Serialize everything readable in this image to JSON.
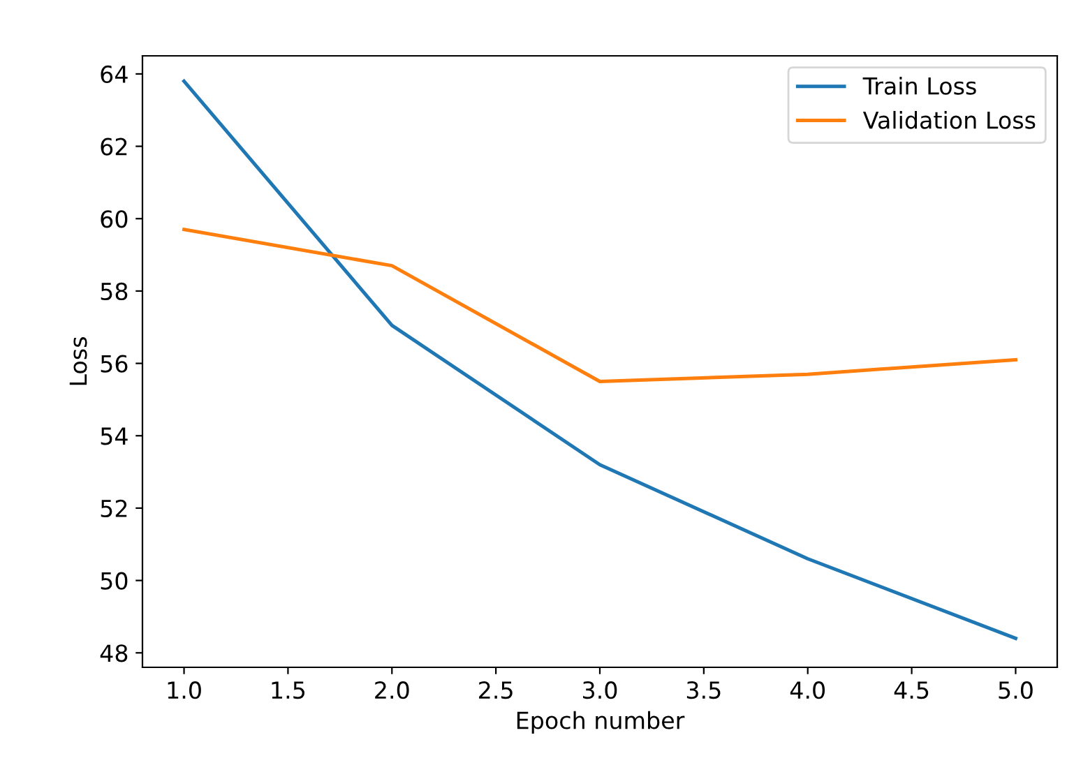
{
  "chart_data": {
    "type": "line",
    "xlabel": "Epoch number",
    "ylabel": "Loss",
    "x": [
      1,
      2,
      3,
      4,
      5
    ],
    "series": [
      {
        "name": "Train Loss",
        "color": "#1f77b4",
        "values": [
          63.8,
          57.05,
          53.2,
          50.6,
          48.4
        ]
      },
      {
        "name": "Validation Loss",
        "color": "#ff7f0e",
        "values": [
          59.7,
          58.7,
          55.5,
          55.7,
          56.1
        ]
      }
    ],
    "xlim": [
      0.8,
      5.2
    ],
    "xticks": [
      {
        "value": 1,
        "label": "1.0"
      },
      {
        "value": 1.5,
        "label": "1.5"
      },
      {
        "value": 2,
        "label": "2.0"
      },
      {
        "value": 2.5,
        "label": "2.5"
      },
      {
        "value": 3,
        "label": "3.0"
      },
      {
        "value": 3.5,
        "label": "3.5"
      },
      {
        "value": 4,
        "label": "4.0"
      },
      {
        "value": 4.5,
        "label": "4.5"
      },
      {
        "value": 5,
        "label": "5.0"
      }
    ],
    "ylim": [
      47.6,
      64.5
    ],
    "yticks": [
      48,
      50,
      52,
      54,
      56,
      58,
      60,
      62,
      64
    ],
    "grid": false,
    "legend": "top right",
    "marker": "none",
    "line_style": "solid"
  }
}
